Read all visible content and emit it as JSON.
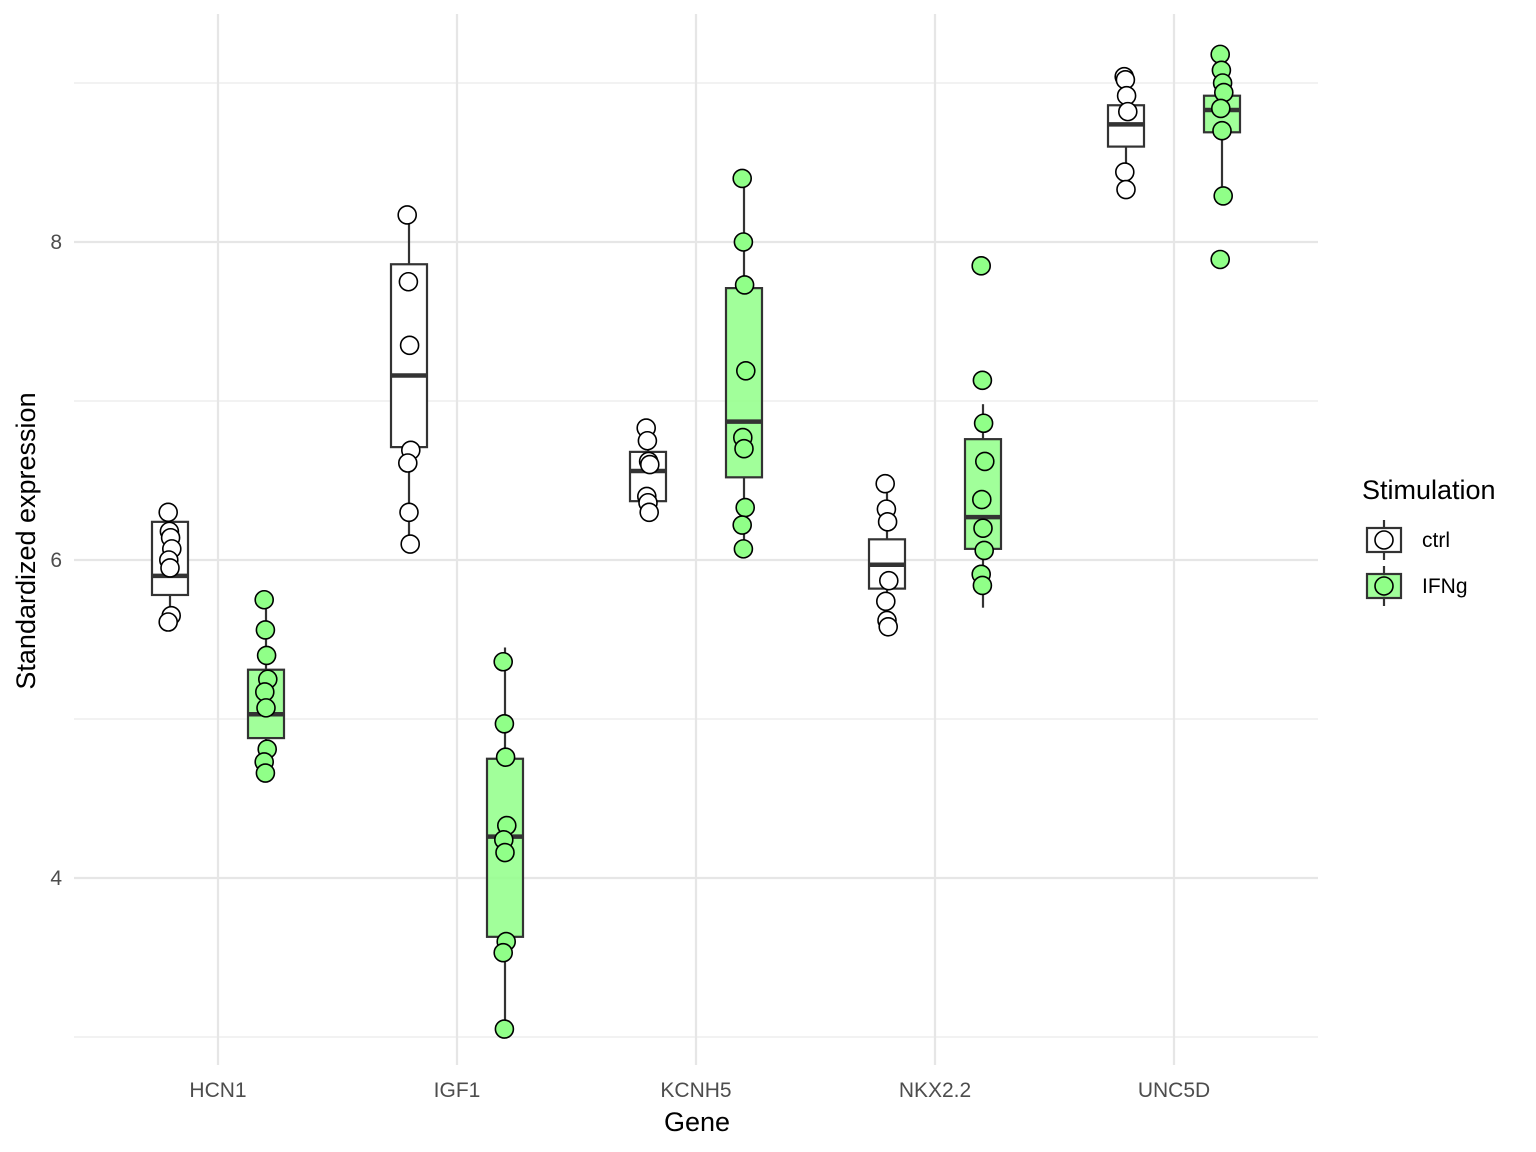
{
  "chart_data": {
    "type": "box",
    "xlabel": "Gene",
    "ylabel": "Standardized expression",
    "categories": [
      "HCN1",
      "IGF1",
      "KCNH5",
      "NKX2.2",
      "UNC5D"
    ],
    "y_ticks": [
      4,
      6,
      8
    ],
    "y_tick_labels": [
      "4",
      "6",
      "8"
    ],
    "ylim": [
      2.9,
      9.55
    ],
    "grid": true,
    "legend": {
      "title": "Stimulation",
      "placement": "right",
      "entries": [
        {
          "label": "ctrl",
          "fill": "#ffffff"
        },
        {
          "label": "IFNg",
          "fill": "#90ff88"
        }
      ]
    },
    "series": [
      {
        "name": "ctrl",
        "box_fill": "#ffffff",
        "point_fill": "#ffffff",
        "boxes": [
          {
            "category": "HCN1",
            "whisker_low": 5.65,
            "q1": 5.78,
            "median": 5.9,
            "q3": 6.24,
            "whisker_high": 6.3
          },
          {
            "category": "IGF1",
            "whisker_low": 6.1,
            "q1": 6.71,
            "median": 7.16,
            "q3": 7.86,
            "whisker_high": 8.17
          },
          {
            "category": "KCNH5",
            "whisker_low": 6.3,
            "q1": 6.37,
            "median": 6.56,
            "q3": 6.68,
            "whisker_high": 6.83
          },
          {
            "category": "NKX2.2",
            "whisker_low": 5.58,
            "q1": 5.82,
            "median": 5.97,
            "q3": 6.13,
            "whisker_high": 6.48
          },
          {
            "category": "UNC5D",
            "whisker_low": 8.33,
            "q1": 8.6,
            "median": 8.74,
            "q3": 8.86,
            "whisker_high": 9.04
          }
        ],
        "points": [
          {
            "category": "HCN1",
            "values": [
              6.3,
              6.18,
              6.14,
              6.07,
              6.0,
              5.95,
              5.65,
              5.61
            ]
          },
          {
            "category": "IGF1",
            "values": [
              8.17,
              7.75,
              7.35,
              6.69,
              6.61,
              6.3,
              6.1
            ]
          },
          {
            "category": "KCNH5",
            "values": [
              6.83,
              6.75,
              6.62,
              6.6,
              6.4,
              6.36,
              6.3
            ]
          },
          {
            "category": "NKX2.2",
            "values": [
              6.48,
              6.32,
              6.24,
              5.87,
              5.74,
              5.62,
              5.58
            ]
          },
          {
            "category": "UNC5D",
            "values": [
              9.04,
              9.02,
              8.92,
              8.82,
              8.44,
              8.33
            ]
          }
        ]
      },
      {
        "name": "IFNg",
        "box_fill": "#90ff88",
        "point_fill": "#90ff88",
        "boxes": [
          {
            "category": "HCN1",
            "whisker_low": 4.65,
            "q1": 4.88,
            "median": 5.03,
            "q3": 5.31,
            "whisker_high": 5.75
          },
          {
            "category": "IGF1",
            "whisker_low": 3.05,
            "q1": 3.63,
            "median": 4.26,
            "q3": 4.75,
            "whisker_high": 5.45
          },
          {
            "category": "KCNH5",
            "whisker_low": 6.07,
            "q1": 6.52,
            "median": 6.87,
            "q3": 7.71,
            "whisker_high": 8.4
          },
          {
            "category": "NKX2.2",
            "whisker_low": 5.7,
            "q1": 6.07,
            "median": 6.27,
            "q3": 6.76,
            "whisker_high": 6.98
          },
          {
            "category": "UNC5D",
            "whisker_low": 8.35,
            "q1": 8.69,
            "median": 8.83,
            "q3": 8.92,
            "whisker_high": 9.18
          }
        ],
        "points": [
          {
            "category": "HCN1",
            "values": [
              5.75,
              5.56,
              5.4,
              5.25,
              5.17,
              5.07,
              4.81,
              4.73,
              4.66
            ]
          },
          {
            "category": "IGF1",
            "values": [
              5.36,
              4.97,
              4.76,
              4.33,
              4.24,
              4.16,
              3.6,
              3.53,
              3.05
            ]
          },
          {
            "category": "KCNH5",
            "values": [
              8.4,
              8.0,
              7.73,
              7.19,
              6.77,
              6.7,
              6.33,
              6.22,
              6.07
            ]
          },
          {
            "category": "NKX2.2",
            "values": [
              7.85,
              7.13,
              6.86,
              6.62,
              6.38,
              6.2,
              6.06,
              5.91,
              5.84
            ]
          },
          {
            "category": "UNC5D",
            "values": [
              9.18,
              9.08,
              9.0,
              8.94,
              8.84,
              8.7,
              8.29,
              7.89
            ]
          }
        ]
      }
    ]
  }
}
